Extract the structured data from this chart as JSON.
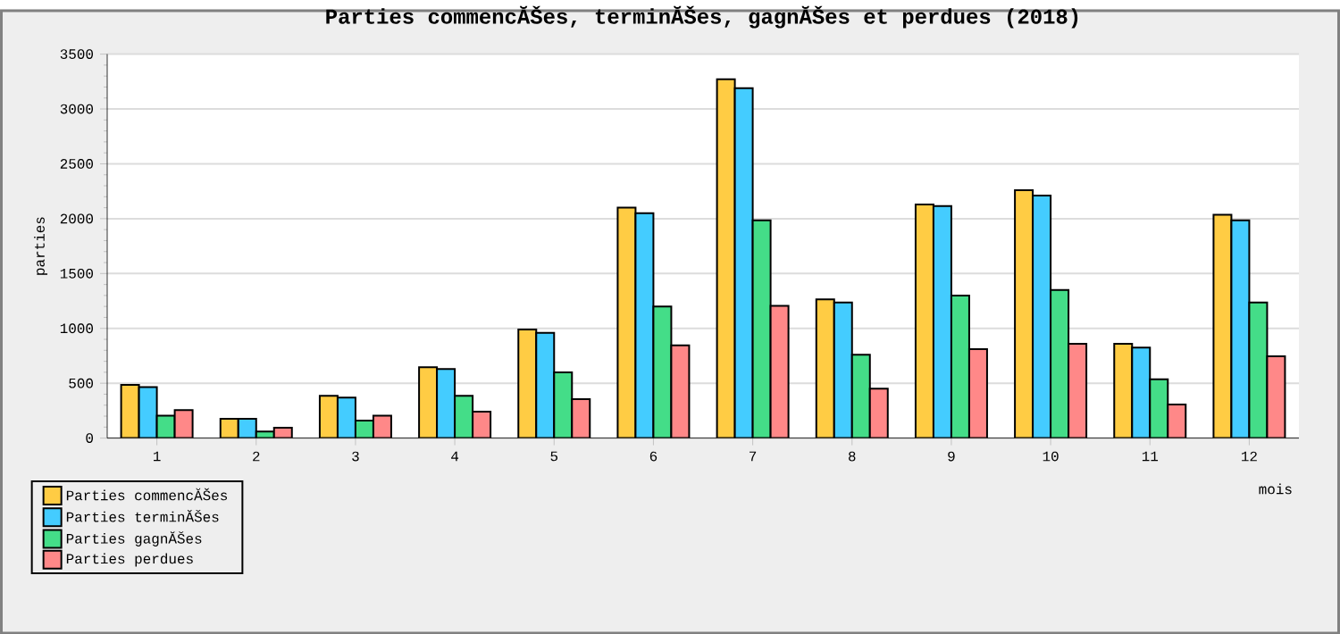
{
  "chart_data": {
    "type": "bar",
    "title": "Parties commencĂŠes, terminĂŠes, gagnĂŠes et perdues (2018)",
    "xlabel": "mois",
    "ylabel": "parties",
    "categories": [
      "1",
      "2",
      "3",
      "4",
      "5",
      "6",
      "7",
      "8",
      "9",
      "10",
      "11",
      "12"
    ],
    "series": [
      {
        "name": "Parties commencĂŠes",
        "color": "#ffcc44",
        "values": [
          485,
          175,
          385,
          645,
          990,
          2100,
          3270,
          1265,
          2130,
          2260,
          860,
          2035
        ]
      },
      {
        "name": "Parties terminĂŠes",
        "color": "#44ccff",
        "values": [
          465,
          175,
          370,
          630,
          960,
          2050,
          3190,
          1235,
          2115,
          2210,
          825,
          1985
        ]
      },
      {
        "name": "Parties gagnĂŠes",
        "color": "#44dd88",
        "values": [
          205,
          60,
          160,
          385,
          600,
          1200,
          1985,
          760,
          1300,
          1350,
          535,
          1235
        ]
      },
      {
        "name": "Parties perdues",
        "color": "#ff8888",
        "values": [
          255,
          95,
          205,
          240,
          355,
          845,
          1205,
          450,
          810,
          860,
          305,
          745
        ]
      }
    ],
    "ylim": [
      0,
      3500
    ],
    "yticks": [
      0,
      500,
      1000,
      1500,
      2000,
      2500,
      3000,
      3500
    ],
    "grid": "y",
    "legend": "bottom left"
  }
}
